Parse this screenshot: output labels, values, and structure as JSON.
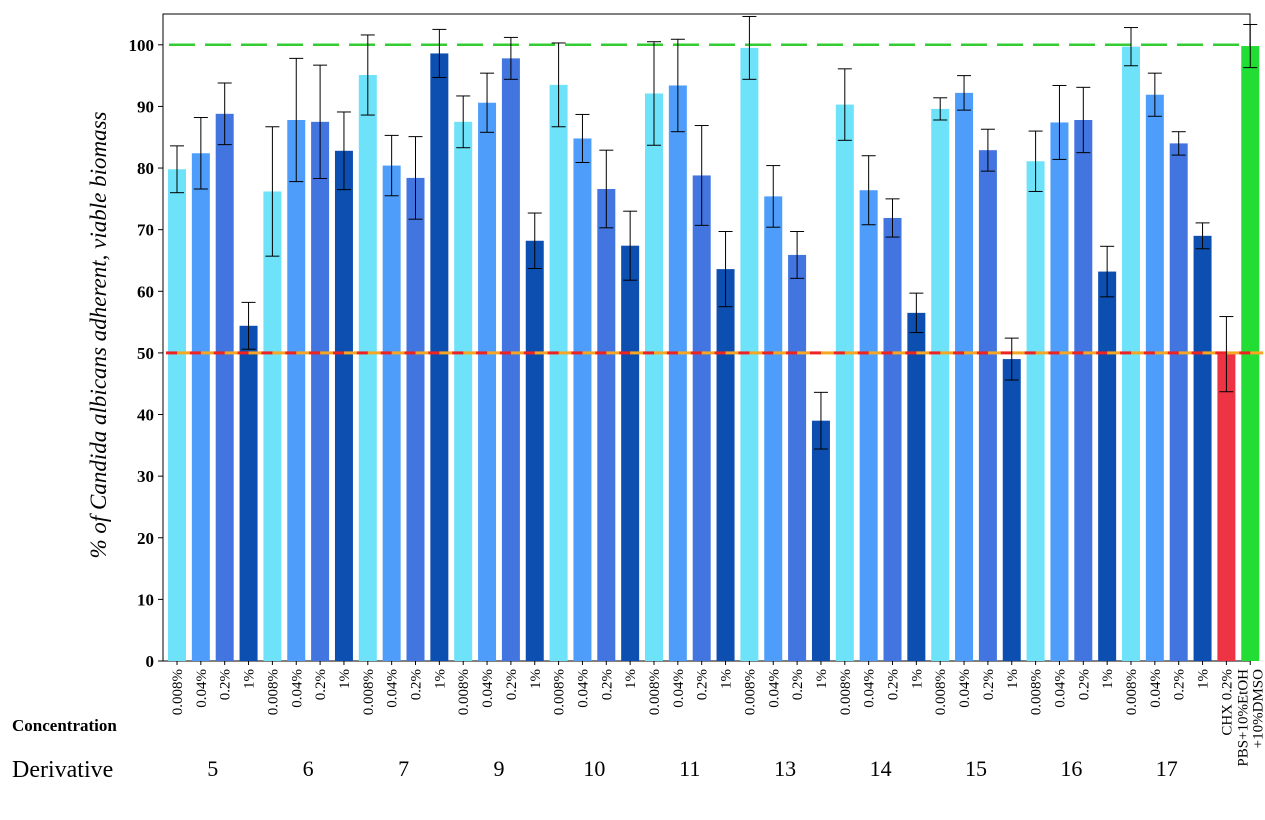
{
  "chart_data": {
    "type": "bar",
    "ylabel_prefix": "% of ",
    "ylabel_species": "Candida albicans",
    "ylabel_suffix": " adherent,  viable biomass",
    "ylim": [
      0,
      105
    ],
    "yticks": [
      0,
      10,
      20,
      30,
      40,
      50,
      60,
      70,
      80,
      90,
      100
    ],
    "row_labels": {
      "concentration": "Concentration",
      "derivative": "Derivative"
    },
    "reference_lines": [
      {
        "value": 100,
        "color": "#33cc33",
        "style": "dashed"
      },
      {
        "value": 50,
        "color": "#ee2222",
        "style": "dashed-short",
        "highlight": "#f5a623"
      }
    ],
    "concentration_colors": {
      "0.008%": "#6ee2f8",
      "0.04%": "#4f9dfa",
      "0.2%": "#4275e0",
      "1%": "#0d4fb0"
    },
    "groups": [
      {
        "derivative": "5",
        "bars": [
          {
            "conc": "0.008%",
            "value": 79.8,
            "err": 3.8
          },
          {
            "conc": "0.04%",
            "value": 82.4,
            "err": 5.8
          },
          {
            "conc": "0.2%",
            "value": 88.8,
            "err": 5.0
          },
          {
            "conc": "1%",
            "value": 54.4,
            "err": 3.8
          }
        ]
      },
      {
        "derivative": "6",
        "bars": [
          {
            "conc": "0.008%",
            "value": 76.2,
            "err": 10.5
          },
          {
            "conc": "0.04%",
            "value": 87.8,
            "err": 10.0
          },
          {
            "conc": "0.2%",
            "value": 87.5,
            "err": 9.2
          },
          {
            "conc": "1%",
            "value": 82.8,
            "err": 6.3
          }
        ]
      },
      {
        "derivative": "7",
        "bars": [
          {
            "conc": "0.008%",
            "value": 95.1,
            "err": 6.5
          },
          {
            "conc": "0.04%",
            "value": 80.4,
            "err": 4.9
          },
          {
            "conc": "0.2%",
            "value": 78.4,
            "err": 6.7
          },
          {
            "conc": "1%",
            "value": 98.6,
            "err": 3.9
          }
        ]
      },
      {
        "derivative": "9",
        "bars": [
          {
            "conc": "0.008%",
            "value": 87.5,
            "err": 4.2
          },
          {
            "conc": "0.04%",
            "value": 90.6,
            "err": 4.8
          },
          {
            "conc": "0.2%",
            "value": 97.8,
            "err": 3.4
          },
          {
            "conc": "1%",
            "value": 68.2,
            "err": 4.5
          }
        ]
      },
      {
        "derivative": "10",
        "bars": [
          {
            "conc": "0.008%",
            "value": 93.5,
            "err": 6.8
          },
          {
            "conc": "0.04%",
            "value": 84.8,
            "err": 3.9
          },
          {
            "conc": "0.2%",
            "value": 76.6,
            "err": 6.3
          },
          {
            "conc": "1%",
            "value": 67.4,
            "err": 5.6
          }
        ]
      },
      {
        "derivative": "11",
        "bars": [
          {
            "conc": "0.008%",
            "value": 92.1,
            "err": 8.4
          },
          {
            "conc": "0.04%",
            "value": 93.4,
            "err": 7.5
          },
          {
            "conc": "0.2%",
            "value": 78.8,
            "err": 8.1
          },
          {
            "conc": "1%",
            "value": 63.6,
            "err": 6.1
          }
        ]
      },
      {
        "derivative": "13",
        "bars": [
          {
            "conc": "0.008%",
            "value": 99.5,
            "err": 5.1
          },
          {
            "conc": "0.04%",
            "value": 75.4,
            "err": 5.0
          },
          {
            "conc": "0.2%",
            "value": 65.9,
            "err": 3.8
          },
          {
            "conc": "1%",
            "value": 39.0,
            "err": 4.6
          }
        ]
      },
      {
        "derivative": "14",
        "bars": [
          {
            "conc": "0.008%",
            "value": 90.3,
            "err": 5.8
          },
          {
            "conc": "0.04%",
            "value": 76.4,
            "err": 5.6
          },
          {
            "conc": "0.2%",
            "value": 71.9,
            "err": 3.1
          },
          {
            "conc": "1%",
            "value": 56.5,
            "err": 3.2
          }
        ]
      },
      {
        "derivative": "15",
        "bars": [
          {
            "conc": "0.008%",
            "value": 89.6,
            "err": 1.8
          },
          {
            "conc": "0.04%",
            "value": 92.2,
            "err": 2.8
          },
          {
            "conc": "0.2%",
            "value": 82.9,
            "err": 3.4
          },
          {
            "conc": "1%",
            "value": 49.0,
            "err": 3.4
          }
        ]
      },
      {
        "derivative": "16",
        "bars": [
          {
            "conc": "0.008%",
            "value": 81.1,
            "err": 4.9
          },
          {
            "conc": "0.04%",
            "value": 87.4,
            "err": 6.0
          },
          {
            "conc": "0.2%",
            "value": 87.8,
            "err": 5.3
          },
          {
            "conc": "1%",
            "value": 63.2,
            "err": 4.1
          }
        ]
      },
      {
        "derivative": "17",
        "bars": [
          {
            "conc": "0.008%",
            "value": 99.7,
            "err": 3.1
          },
          {
            "conc": "0.04%",
            "value": 91.9,
            "err": 3.5
          },
          {
            "conc": "0.2%",
            "value": 84.0,
            "err": 1.9
          },
          {
            "conc": "1%",
            "value": 69.0,
            "err": 2.1
          }
        ]
      }
    ],
    "controls": [
      {
        "label": "CHX 0.2%",
        "value": 49.8,
        "err": 6.1,
        "color": "#ee3344"
      },
      {
        "label": "PBS+10%EtOH",
        "label_line2": "+10%DMSO",
        "value": 99.8,
        "err": 3.5,
        "color": "#22dd33"
      }
    ]
  }
}
